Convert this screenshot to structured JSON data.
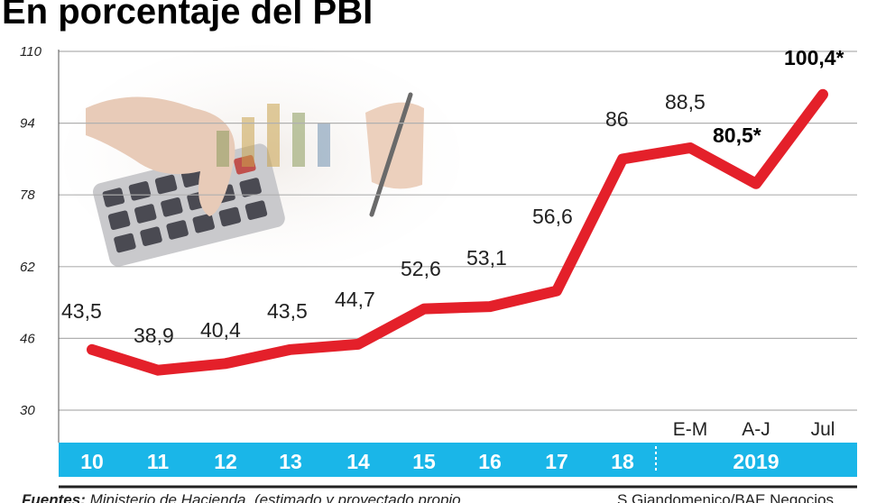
{
  "title": "En porcentaje del PBI",
  "footer": {
    "source_label": "Fuentes:",
    "source_text": "Ministerio de Hacienda, (estimado y proyectado propio",
    "credit": "S.Giandomenico/BAE Negocios"
  },
  "chart_data": {
    "type": "line",
    "title": "En porcentaje del PBI",
    "xlabel": "",
    "ylabel": "",
    "ylim": [
      30,
      110
    ],
    "yticks": [
      "110",
      "94",
      "78",
      "62",
      "46",
      "30"
    ],
    "categories": [
      "10",
      "11",
      "12",
      "13",
      "14",
      "15",
      "16",
      "17",
      "18",
      "E-M",
      "A-J",
      "Jul"
    ],
    "year_bar": [
      "10",
      "11",
      "12",
      "13",
      "14",
      "15",
      "16",
      "17",
      "18",
      "2019"
    ],
    "sub_categories": [
      "E-M",
      "A-J",
      "Jul"
    ],
    "series": [
      {
        "values": [
          43.5,
          38.9,
          40.4,
          43.5,
          44.7,
          52.6,
          53.1,
          56.6,
          86,
          88.5,
          80.5,
          100.4
        ]
      }
    ],
    "data_labels": [
      "43,5",
      "38,9",
      "40,4",
      "43,5",
      "44,7",
      "52,6",
      "53,1",
      "56,6",
      "86",
      "88,5",
      "80,5*",
      "100,4*"
    ],
    "grid": true,
    "colors": {
      "line": "#e4202a",
      "year_bar": "#1ab6e8",
      "grid": "#b0b0b0"
    }
  }
}
